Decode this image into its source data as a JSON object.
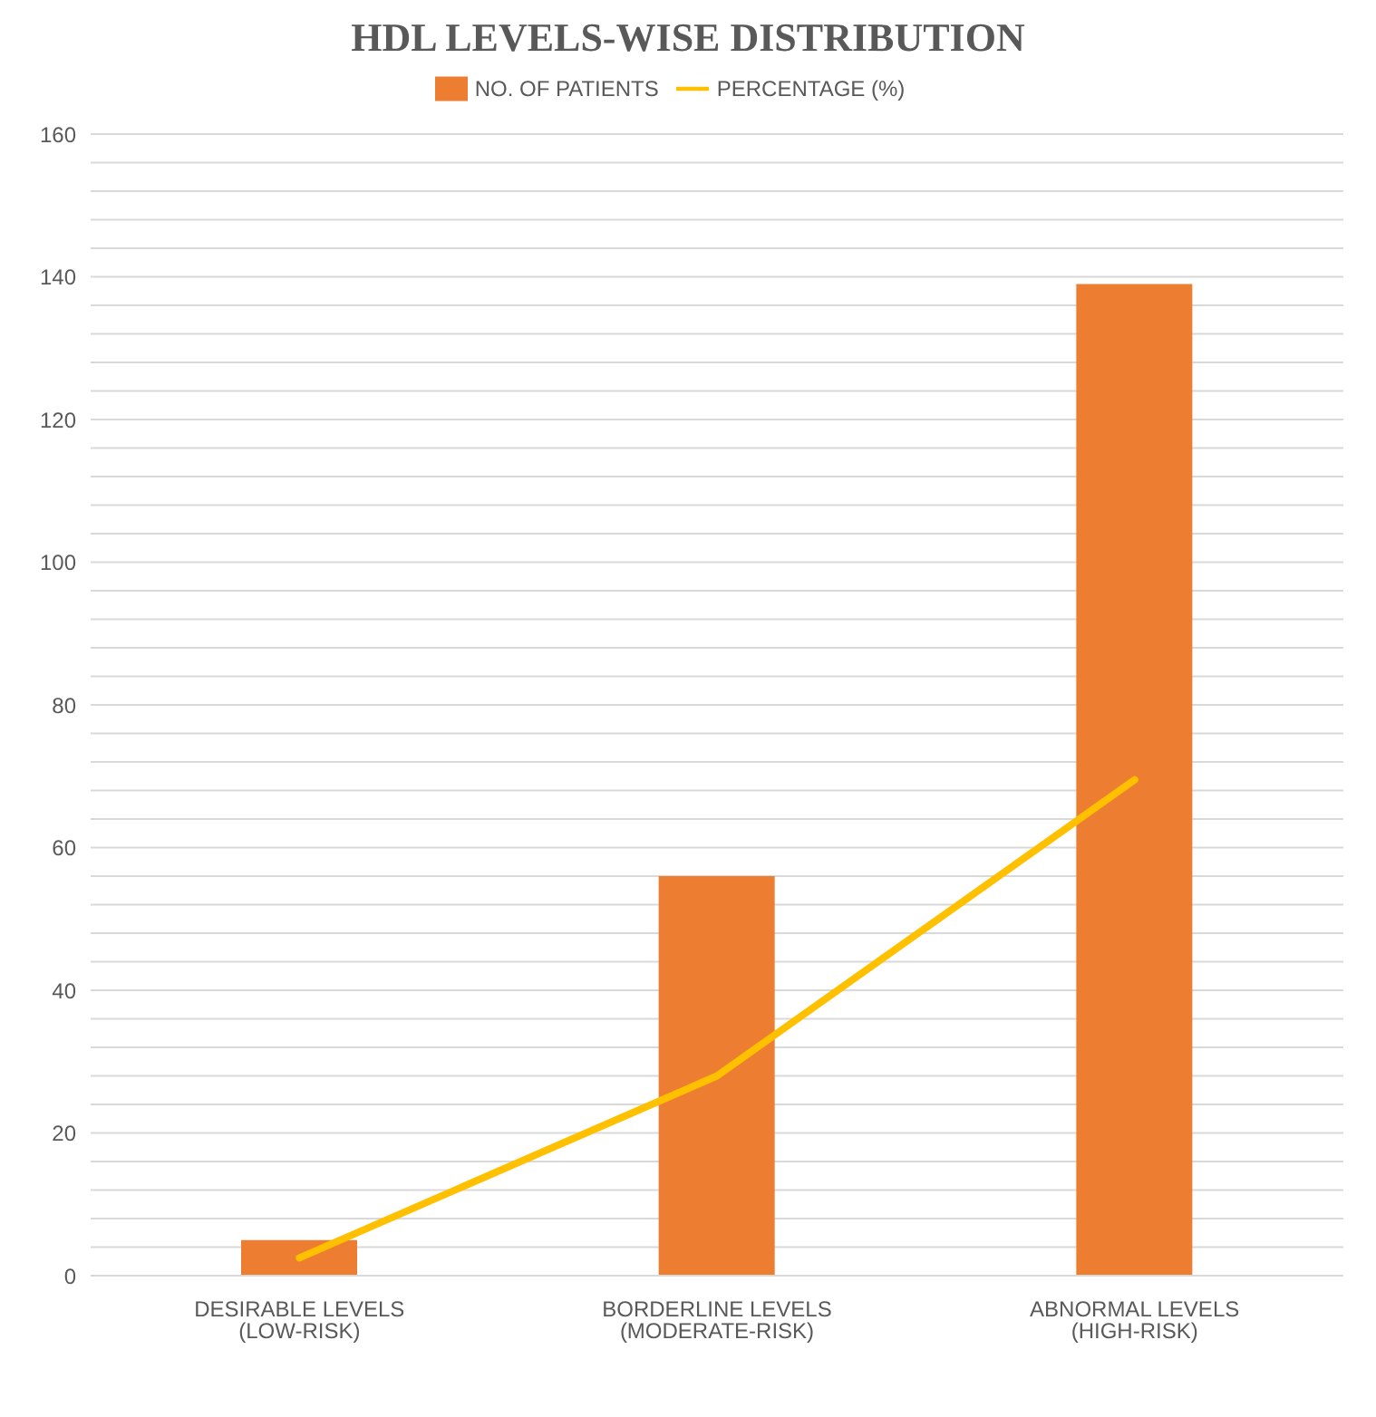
{
  "chart_data": {
    "type": "bar",
    "title": "HDL LEVELS-WISE DISTRIBUTION",
    "categories": [
      "DESIRABLE LEVELS (LOW-RISK)",
      "BORDERLINE LEVELS (MODERATE-RISK)",
      "ABNORMAL LEVELS (HIGH-RISK)"
    ],
    "series": [
      {
        "name": "NO. OF PATIENTS",
        "color": "#ed7d31",
        "values": [
          5,
          56,
          139
        ]
      },
      {
        "name": "PERCENTAGE (%)",
        "type": "line",
        "color": "#ffc000",
        "values": [
          2.5,
          28,
          69.5
        ]
      }
    ],
    "ylim": [
      0,
      160
    ],
    "yticks": [
      0,
      {
        "value": 4,
        "label": null
      },
      {
        "value": 8,
        "label": null
      },
      {
        "value": 12,
        "label": null
      },
      {
        "value": 16,
        "label": null
      },
      20,
      {
        "value": 24,
        "label": null
      },
      {
        "value": 28,
        "label": null
      },
      {
        "value": 32,
        "label": null
      },
      {
        "value": 36,
        "label": null
      },
      40,
      {
        "value": 44,
        "label": null
      },
      {
        "value": 48,
        "label": null
      },
      {
        "value": 52,
        "label": null
      },
      {
        "value": 56,
        "label": null
      },
      60,
      {
        "value": 64,
        "label": null
      },
      {
        "value": 68,
        "label": null
      },
      {
        "value": 72,
        "label": null
      },
      {
        "value": 76,
        "label": null
      },
      80,
      {
        "value": 84,
        "label": null
      },
      {
        "value": 88,
        "label": null
      },
      {
        "value": 92,
        "label": null
      },
      {
        "value": 96,
        "label": null
      },
      100,
      {
        "value": 104,
        "label": null
      },
      {
        "value": 108,
        "label": null
      },
      {
        "value": 112,
        "label": null
      },
      {
        "value": 116,
        "label": null
      },
      120,
      {
        "value": 124,
        "label": null
      },
      {
        "value": 128,
        "label": null
      },
      {
        "value": 132,
        "label": null
      },
      {
        "value": 136,
        "label": null
      },
      140,
      {
        "value": 144,
        "label": null
      },
      {
        "value": 148,
        "label": null
      },
      {
        "value": 152,
        "label": null
      },
      {
        "value": 156,
        "label": null
      },
      160
    ],
    "grid": "y",
    "legend": "top",
    "marker": "none"
  }
}
